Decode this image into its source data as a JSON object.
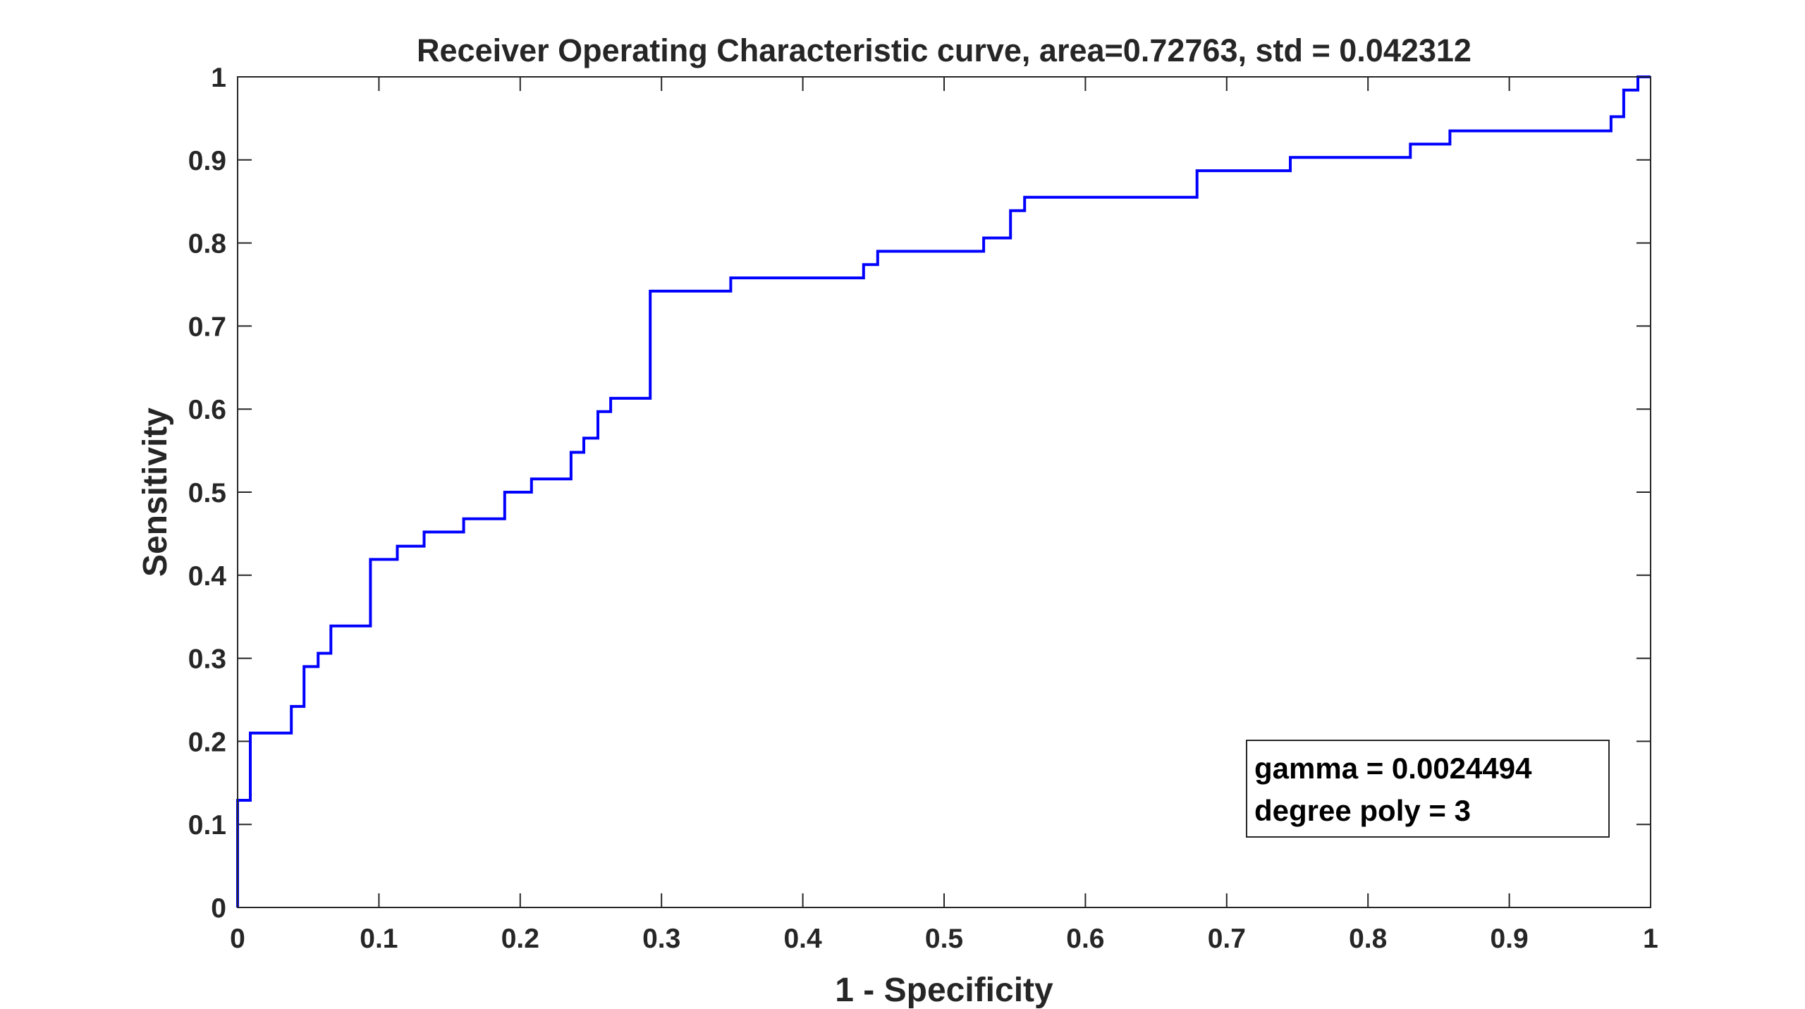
{
  "chart_data": {
    "type": "line",
    "title": "Receiver Operating Characteristic curve, area=0.72763, std = 0.042312",
    "xlabel": "1 - Specificity",
    "ylabel": "Sensitivity",
    "xlim": [
      0,
      1
    ],
    "ylim": [
      0,
      1
    ],
    "xticks": [
      0,
      0.1,
      0.2,
      0.3,
      0.4,
      0.5,
      0.6,
      0.7,
      0.8,
      0.9,
      1
    ],
    "xtick_labels": [
      "0",
      "0.1",
      "0.2",
      "0.3",
      "0.4",
      "0.5",
      "0.6",
      "0.7",
      "0.8",
      "0.9",
      "1"
    ],
    "yticks": [
      0,
      0.1,
      0.2,
      0.3,
      0.4,
      0.5,
      0.6,
      0.7,
      0.8,
      0.9,
      1
    ],
    "ytick_labels": [
      "0",
      "0.1",
      "0.2",
      "0.3",
      "0.4",
      "0.5",
      "0.6",
      "0.7",
      "0.8",
      "0.9",
      "1"
    ],
    "grid": false,
    "legend_position": "bottom-right",
    "annotation_lines": [
      "gamma = 0.0024494",
      "degree poly = 3"
    ],
    "series": [
      {
        "name": "ROC",
        "color": "#0000ff",
        "x": [
          0,
          0,
          0.009,
          0.009,
          0.038,
          0.038,
          0.047,
          0.047,
          0.057,
          0.057,
          0.066,
          0.066,
          0.094,
          0.094,
          0.113,
          0.113,
          0.132,
          0.132,
          0.16,
          0.16,
          0.189,
          0.189,
          0.208,
          0.208,
          0.236,
          0.236,
          0.245,
          0.245,
          0.255,
          0.255,
          0.264,
          0.264,
          0.292,
          0.292,
          0.349,
          0.349,
          0.443,
          0.443,
          0.453,
          0.453,
          0.528,
          0.528,
          0.547,
          0.547,
          0.557,
          0.557,
          0.679,
          0.679,
          0.745,
          0.745,
          0.83,
          0.83,
          0.858,
          0.858,
          0.972,
          0.972,
          0.981,
          0.981,
          0.991,
          0.991,
          1
        ],
        "y": [
          0,
          0.129,
          0.129,
          0.21,
          0.21,
          0.242,
          0.242,
          0.29,
          0.29,
          0.306,
          0.306,
          0.339,
          0.339,
          0.419,
          0.419,
          0.435,
          0.435,
          0.452,
          0.452,
          0.468,
          0.468,
          0.5,
          0.5,
          0.516,
          0.516,
          0.548,
          0.548,
          0.565,
          0.565,
          0.597,
          0.597,
          0.613,
          0.613,
          0.742,
          0.742,
          0.758,
          0.758,
          0.774,
          0.774,
          0.79,
          0.79,
          0.806,
          0.806,
          0.839,
          0.839,
          0.855,
          0.855,
          0.887,
          0.887,
          0.903,
          0.903,
          0.919,
          0.919,
          0.935,
          0.935,
          0.952,
          0.952,
          0.984,
          0.984,
          1,
          1
        ]
      }
    ]
  }
}
